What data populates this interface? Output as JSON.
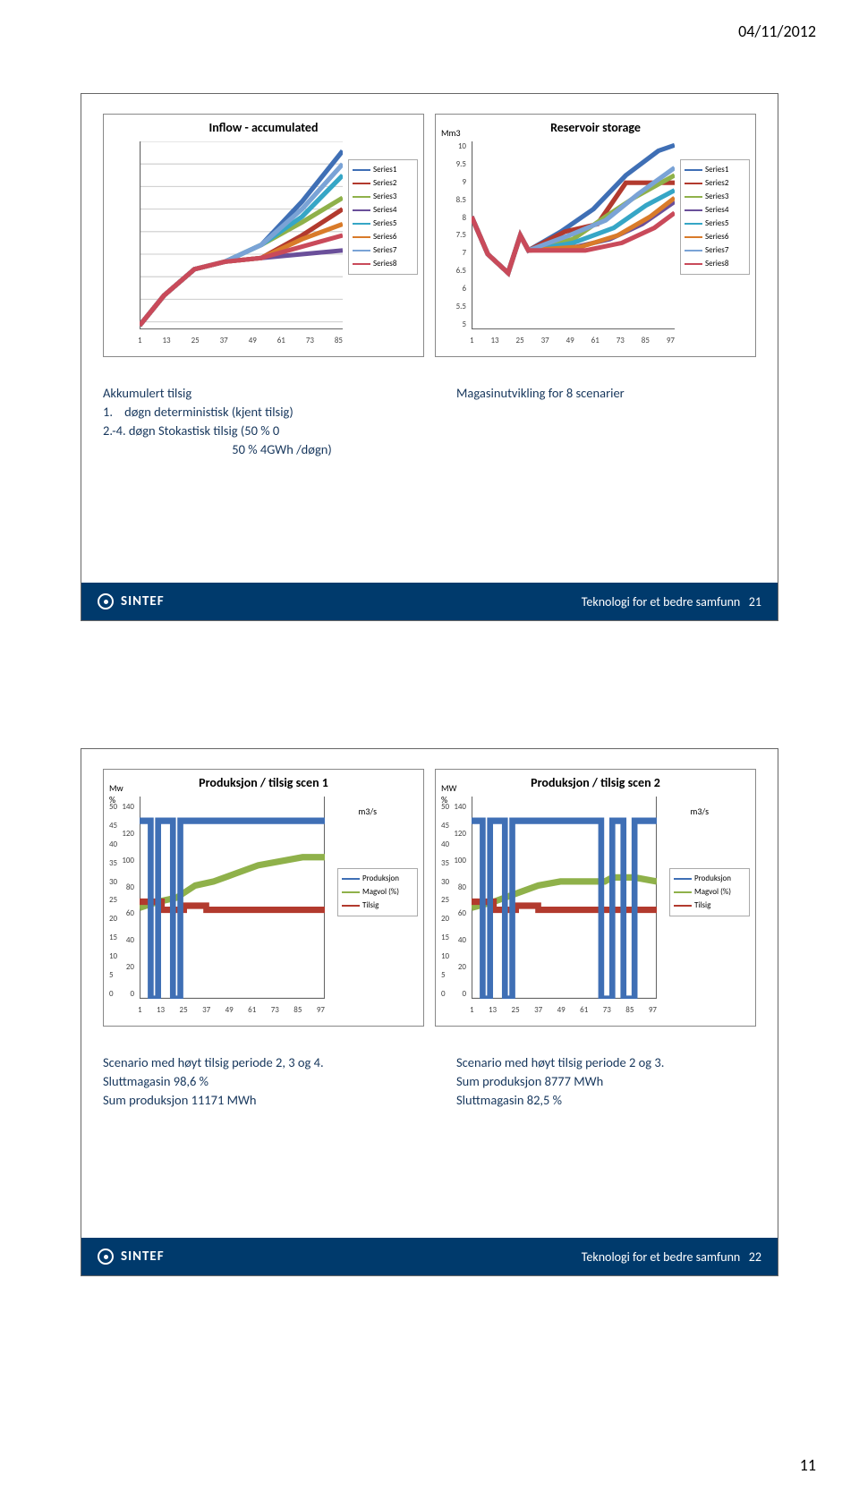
{
  "header": {
    "date": "04/11/2012",
    "page_number": "11"
  },
  "sintef": {
    "brand": "SINTEF",
    "tagline": "Teknologi for et bedre samfunn"
  },
  "slide21": {
    "footer_num": "21",
    "chart1": {
      "title": "Inflow - accumulated",
      "x_ticks": [
        "1",
        "13",
        "25",
        "37",
        "49",
        "61",
        "73",
        "85"
      ],
      "series_labels": [
        "Series1",
        "Series2",
        "Series3",
        "Series4",
        "Series5",
        "Series6",
        "Series7",
        "Series8"
      ],
      "colors": [
        "#3f6fb5",
        "#b23a2e",
        "#8fb14a",
        "#6a4f9a",
        "#36a6c6",
        "#d97b2a",
        "#7aa3d6",
        "#c94a5a"
      ]
    },
    "chart2": {
      "title": "Reservoir storage",
      "y_label": "Mm3",
      "x_ticks": [
        "1",
        "13",
        "25",
        "37",
        "49",
        "61",
        "73",
        "85",
        "97"
      ],
      "y_ticks": [
        "10",
        "9.5",
        "9",
        "8.5",
        "8",
        "7.5",
        "7",
        "6.5",
        "6",
        "5.5",
        "5"
      ],
      "series_labels": [
        "Series1",
        "Series2",
        "Series3",
        "Series4",
        "Series5",
        "Series6",
        "Series7",
        "Series8"
      ],
      "colors": [
        "#3f6fb5",
        "#b23a2e",
        "#8fb14a",
        "#6a4f9a",
        "#36a6c6",
        "#d97b2a",
        "#7aa3d6",
        "#c94a5a"
      ]
    },
    "notes": {
      "left": [
        "Akkumulert tilsig",
        "1.    døgn deterministisk (kjent tilsig)",
        "2.-4. døgn Stokastisk tilsig (50 % 0",
        "                                            50 % 4GWh /døgn)"
      ],
      "right_title": "Magasinutvikling for 8 scenarier"
    }
  },
  "slide22": {
    "footer_num": "22",
    "chart1": {
      "title": "Produksjon / tilsig scen 1",
      "yl_label": "Mw\n%",
      "y2_label": "m3/s",
      "x_ticks": [
        "1",
        "13",
        "25",
        "37",
        "49",
        "61",
        "73",
        "85",
        "97"
      ],
      "y_left": [
        "140",
        "120",
        "100",
        "80",
        "60",
        "40",
        "20",
        "0"
      ],
      "y_right": [
        "50",
        "45",
        "40",
        "35",
        "30",
        "25",
        "20",
        "15",
        "10",
        "5",
        "0"
      ],
      "legend": [
        {
          "label": "Produksjon",
          "color": "#3f6fb5"
        },
        {
          "label": "Magvol (%)",
          "color": "#8fb14a"
        },
        {
          "label": "Tilsig",
          "color": "#b23a2e"
        }
      ]
    },
    "chart2": {
      "title": "Produksjon / tilsig scen 2",
      "yl_label": "MW\n%",
      "y2_label": "m3/s",
      "x_ticks": [
        "1",
        "13",
        "25",
        "37",
        "49",
        "61",
        "73",
        "85",
        "97"
      ],
      "y_left": [
        "140",
        "120",
        "100",
        "80",
        "60",
        "40",
        "20",
        "0"
      ],
      "y_right": [
        "50",
        "45",
        "40",
        "35",
        "30",
        "25",
        "20",
        "15",
        "10",
        "5",
        "0"
      ],
      "legend": [
        {
          "label": "Produksjon",
          "color": "#3f6fb5"
        },
        {
          "label": "Magvol (%)",
          "color": "#8fb14a"
        },
        {
          "label": "Tilsig",
          "color": "#b23a2e"
        }
      ]
    },
    "notes": {
      "left": [
        "Scenario med høyt tilsig periode 2, 3 og 4.",
        "Sluttmagasin 98,6 %",
        "Sum produksjon 11171 MWh"
      ],
      "right": [
        "Scenario med høyt tilsig periode 2 og 3.",
        "Sum produksjon 8777 MWh",
        "Sluttmagasin 82,5 %"
      ]
    }
  }
}
